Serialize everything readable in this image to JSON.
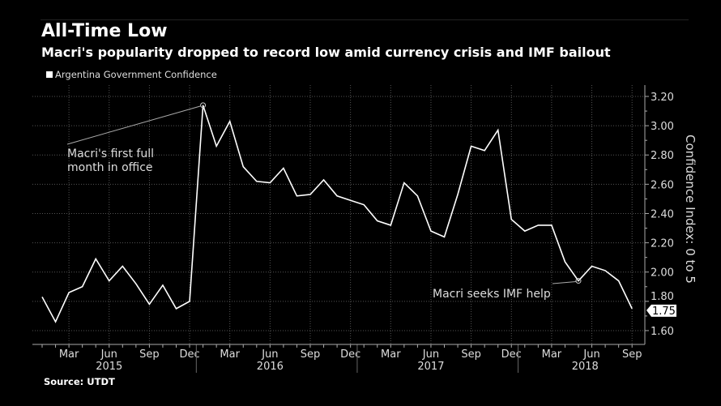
{
  "header": {
    "title": "All-Time Low",
    "subtitle": "Macri's popularity dropped to record low amid currency crisis and IMF bailout"
  },
  "source": "Source: UTDT",
  "chart_data": {
    "type": "line",
    "title": "All-Time Low",
    "subtitle": "Macri's popularity dropped to record low amid currency crisis and IMF bailout",
    "legend": [
      {
        "name": "Argentina Government Confidence",
        "color": "#ffffff"
      }
    ],
    "legend_placement": "top-left",
    "ylabel": "Confidence Index: 0 to 5",
    "ylim": [
      1.5,
      3.3
    ],
    "yticks": [
      "1.60",
      "1.80",
      "2.00",
      "2.20",
      "2.40",
      "2.60",
      "2.80",
      "3.00",
      "3.20"
    ],
    "grid": true,
    "x_start": "2015-01",
    "xticks": [
      {
        "label": "Mar",
        "month": 2
      },
      {
        "label": "Jun",
        "month": 5
      },
      {
        "label": "Sep",
        "month": 8
      },
      {
        "label": "Dec",
        "month": 11
      },
      {
        "label": "Mar",
        "month": 14
      },
      {
        "label": "Jun",
        "month": 17
      },
      {
        "label": "Sep",
        "month": 20
      },
      {
        "label": "Dec",
        "month": 23
      },
      {
        "label": "Mar",
        "month": 26
      },
      {
        "label": "Jun",
        "month": 29
      },
      {
        "label": "Sep",
        "month": 32
      },
      {
        "label": "Dec",
        "month": 35
      },
      {
        "label": "Mar",
        "month": 38
      },
      {
        "label": "Jun",
        "month": 41
      },
      {
        "label": "Sep",
        "month": 44
      }
    ],
    "years": [
      {
        "label": "2015",
        "month": 5
      },
      {
        "label": "2016",
        "month": 17
      },
      {
        "label": "2017",
        "month": 29
      },
      {
        "label": "2018",
        "month": 40.5
      }
    ],
    "series": [
      {
        "name": "Argentina Government Confidence",
        "values": [
          1.83,
          1.66,
          1.86,
          1.9,
          2.09,
          1.94,
          2.04,
          1.92,
          1.78,
          1.91,
          1.75,
          1.8,
          3.14,
          2.86,
          3.03,
          2.72,
          2.62,
          2.61,
          2.71,
          2.52,
          2.53,
          2.63,
          2.52,
          2.49,
          2.46,
          2.35,
          2.32,
          2.61,
          2.52,
          2.28,
          2.24,
          2.53,
          2.86,
          2.83,
          2.97,
          2.36,
          2.28,
          2.32,
          2.32,
          2.07,
          1.94,
          2.04,
          2.01,
          1.94,
          1.75
        ]
      }
    ],
    "last_value_label": "1.75",
    "annotations": [
      {
        "text": "Macri's first full",
        "text2": "month in office",
        "month": 12
      },
      {
        "text": "Macri seeks IMF help",
        "month": 40
      }
    ]
  }
}
